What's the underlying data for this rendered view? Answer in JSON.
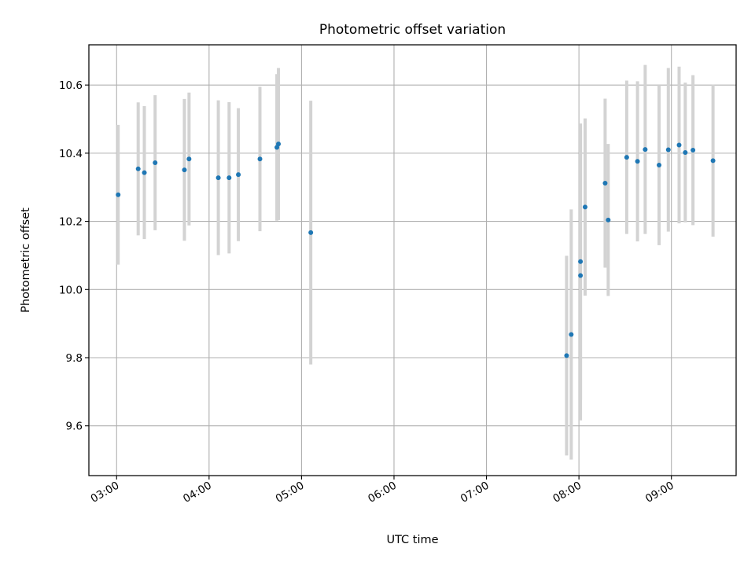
{
  "chart_data": {
    "type": "scatter",
    "title": "Photometric offset variation",
    "xlabel": "UTC time",
    "ylabel": "Photometric offset",
    "x_ticks": [
      "03:00",
      "04:00",
      "05:00",
      "06:00",
      "07:00",
      "08:00",
      "09:00"
    ],
    "y_ticks": [
      "9.6",
      "9.8",
      "10.0",
      "10.2",
      "10.4",
      "10.6"
    ],
    "xlim": [
      "02:42",
      "09:42"
    ],
    "ylim": [
      9.454,
      10.718
    ],
    "grid": true,
    "colors": {
      "point": "#1f77b4",
      "errorbar": "#d3d3d3",
      "grid": "#b0b0b0"
    },
    "points": [
      {
        "x": "03:01",
        "y": 10.278,
        "err": 0.205
      },
      {
        "x": "03:14",
        "y": 10.354,
        "err": 0.195
      },
      {
        "x": "03:18",
        "y": 10.343,
        "err": 0.195
      },
      {
        "x": "03:25",
        "y": 10.372,
        "err": 0.198
      },
      {
        "x": "03:44",
        "y": 10.351,
        "err": 0.208
      },
      {
        "x": "03:47",
        "y": 10.383,
        "err": 0.195
      },
      {
        "x": "04:06",
        "y": 10.328,
        "err": 0.227
      },
      {
        "x": "04:13",
        "y": 10.328,
        "err": 0.222
      },
      {
        "x": "04:19",
        "y": 10.337,
        "err": 0.195
      },
      {
        "x": "04:33",
        "y": 10.383,
        "err": 0.212
      },
      {
        "x": "04:44",
        "y": 10.417,
        "err": 0.215
      },
      {
        "x": "04:45",
        "y": 10.427,
        "err": 0.223
      },
      {
        "x": "05:06",
        "y": 10.167,
        "err": 0.387
      },
      {
        "x": "07:52",
        "y": 9.806,
        "err": 0.293
      },
      {
        "x": "07:55",
        "y": 9.868,
        "err": 0.367
      },
      {
        "x": "08:01",
        "y": 10.041,
        "err": 0.425
      },
      {
        "x": "08:01",
        "y": 10.082,
        "err": 0.405
      },
      {
        "x": "08:04",
        "y": 10.242,
        "err": 0.26
      },
      {
        "x": "08:17",
        "y": 10.312,
        "err": 0.248
      },
      {
        "x": "08:19",
        "y": 10.204,
        "err": 0.223
      },
      {
        "x": "08:31",
        "y": 10.388,
        "err": 0.225
      },
      {
        "x": "08:38",
        "y": 10.376,
        "err": 0.235
      },
      {
        "x": "08:43",
        "y": 10.411,
        "err": 0.248
      },
      {
        "x": "08:52",
        "y": 10.365,
        "err": 0.235
      },
      {
        "x": "08:58",
        "y": 10.41,
        "err": 0.24
      },
      {
        "x": "09:05",
        "y": 10.424,
        "err": 0.23
      },
      {
        "x": "09:09",
        "y": 10.402,
        "err": 0.205
      },
      {
        "x": "09:14",
        "y": 10.409,
        "err": 0.22
      },
      {
        "x": "09:27",
        "y": 10.378,
        "err": 0.223
      }
    ]
  }
}
